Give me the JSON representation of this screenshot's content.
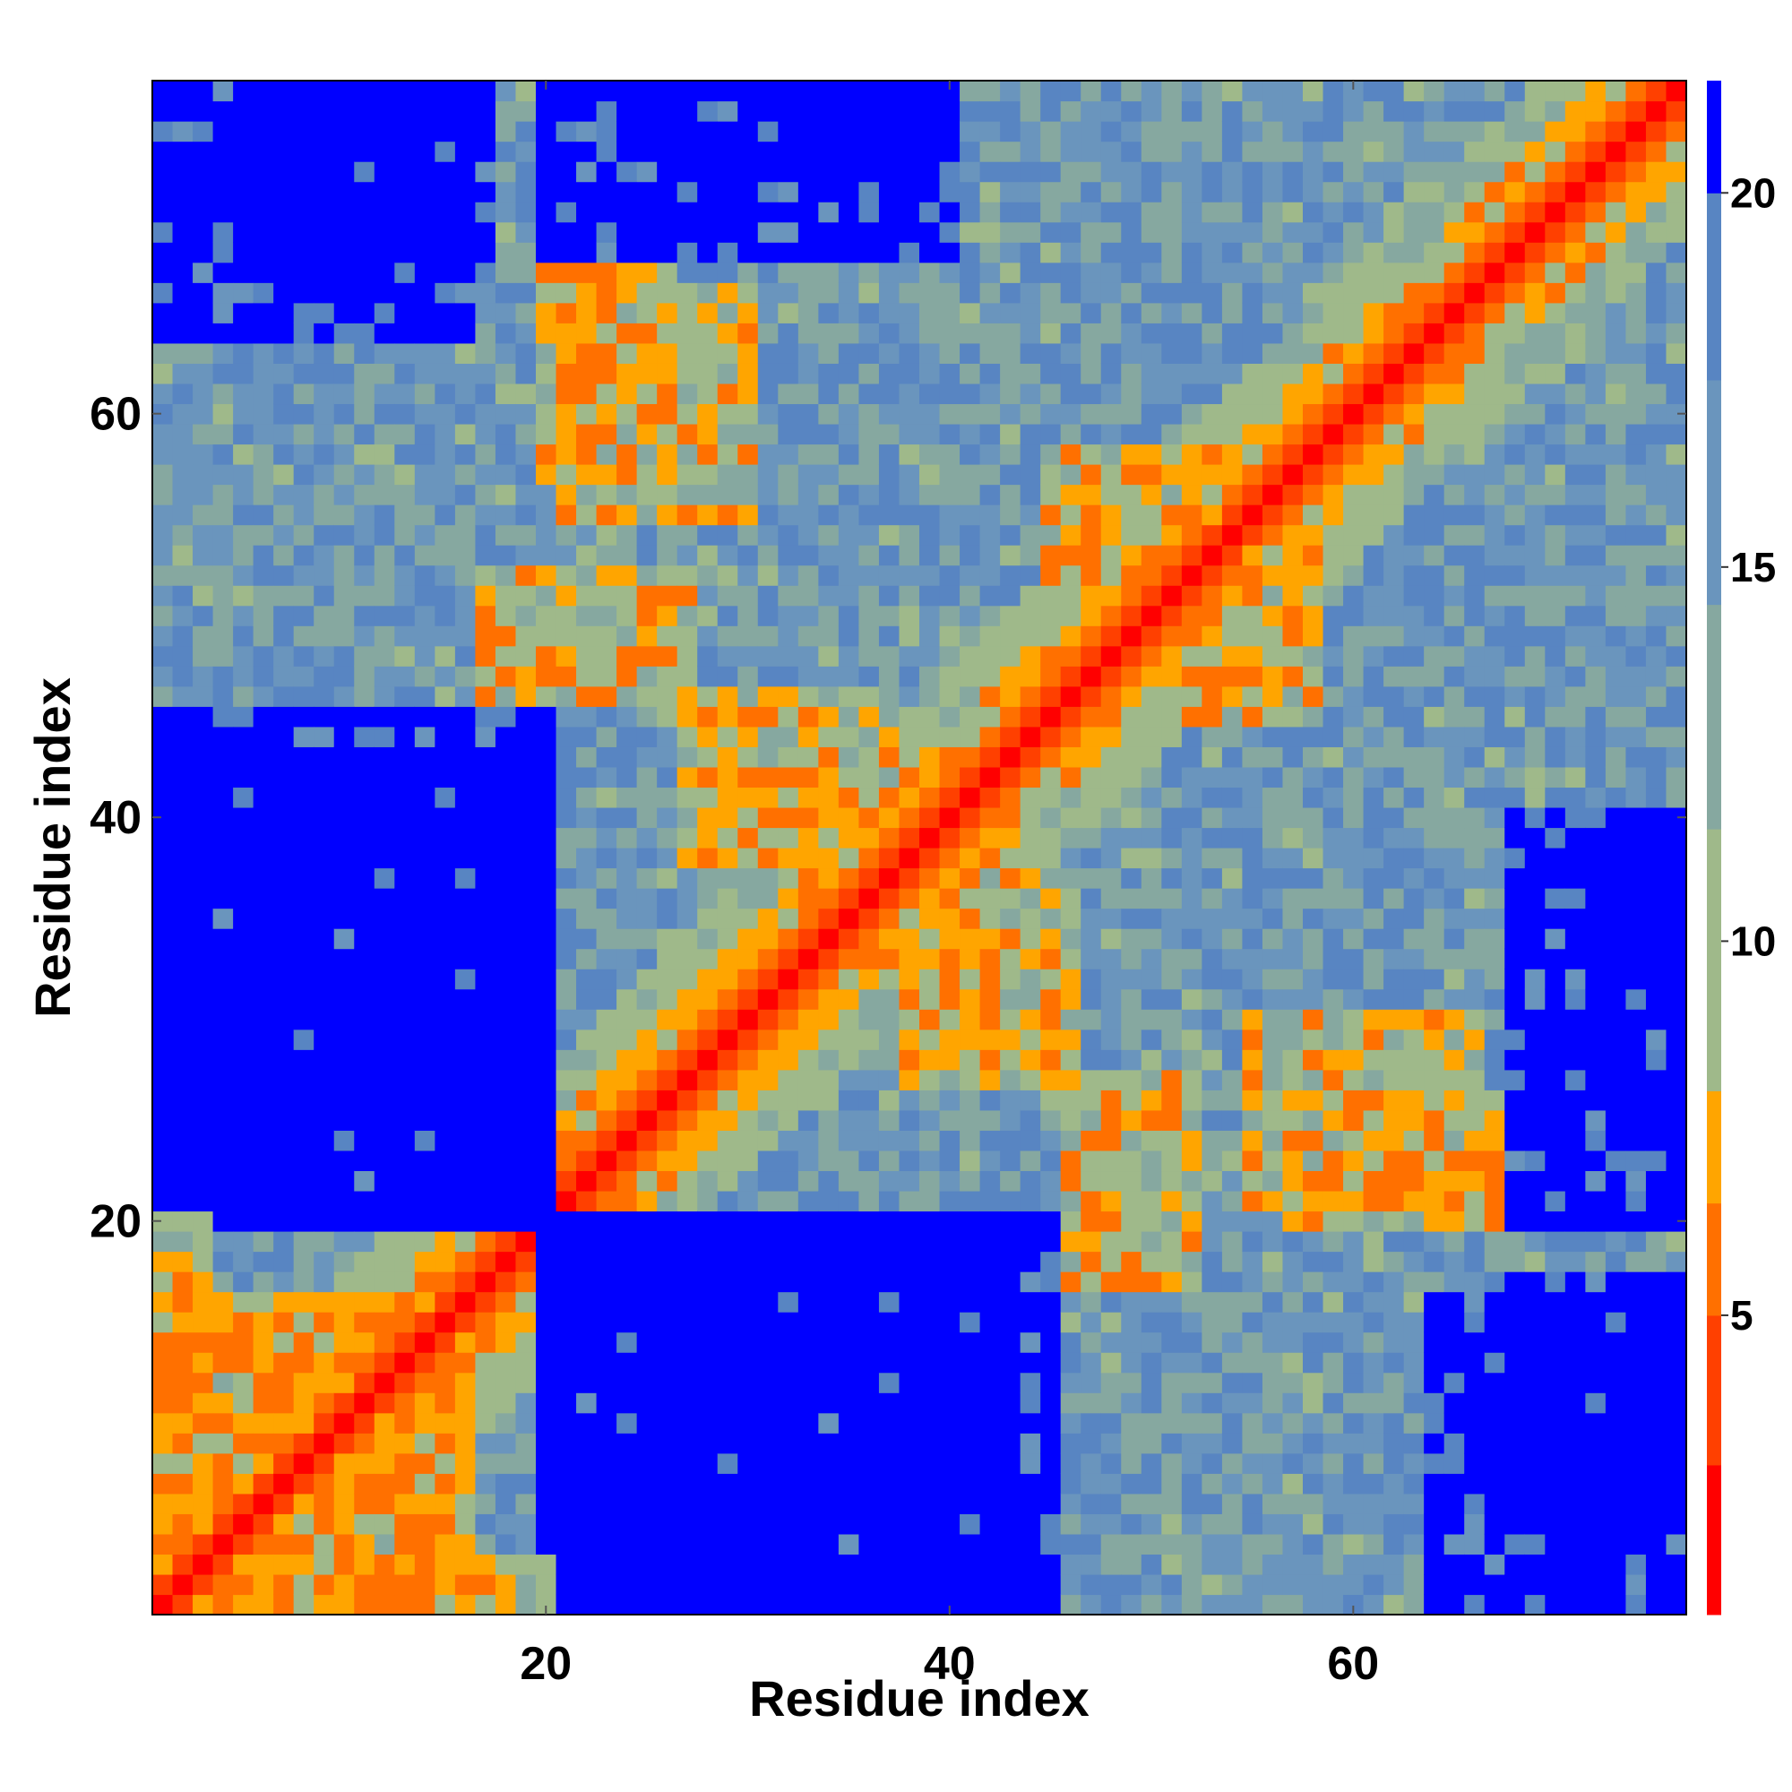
{
  "chart_data": {
    "type": "heatmap",
    "title": "",
    "xlabel": "Residue index",
    "ylabel": "Residue index",
    "n_residues": 76,
    "xlim": [
      1,
      76
    ],
    "ylim": [
      1,
      76
    ],
    "x_ticks": [
      20,
      40,
      60
    ],
    "y_ticks": [
      20,
      40,
      60
    ],
    "x_tick_labels": [
      "20",
      "40",
      "60"
    ],
    "y_tick_labels": [
      "20",
      "40",
      "60"
    ],
    "description_of_values": "pairwise residue distance map (symmetric), values clipped at ~21",
    "colorbar": {
      "range": [
        1,
        21.5
      ],
      "ticks": [
        5,
        10,
        15,
        20
      ],
      "tick_labels": [
        "5",
        "10",
        "15",
        "20"
      ],
      "colors": [
        {
          "to": 3,
          "color": "#ff0000"
        },
        {
          "to": 5,
          "color": "#ff4000"
        },
        {
          "to": 6.5,
          "color": "#ff7000"
        },
        {
          "to": 8,
          "color": "#ffa500"
        },
        {
          "to": 11.5,
          "color": "#9fb98a"
        },
        {
          "to": 14.5,
          "color": "#86a8a0"
        },
        {
          "to": 17.5,
          "color": "#6a95bd"
        },
        {
          "to": 20,
          "color": "#5885c2"
        },
        {
          "to": 21.5,
          "color": "#0000ff"
        }
      ]
    },
    "contact_regions": [
      {
        "residues_x": [
          1,
          16
        ],
        "residues_y": [
          1,
          16
        ],
        "feature": "beta hairpin band parallel to diagonal (offset ~3-6)"
      },
      {
        "residues_x": [
          21,
          30
        ],
        "residues_y": [
          55,
          66
        ],
        "feature": "off-diagonal orange contacts"
      },
      {
        "residues_x": [
          17,
          27
        ],
        "residues_y": [
          46,
          52
        ],
        "feature": "off-diagonal orange contacts"
      },
      {
        "residues_x": [
          27,
          37
        ],
        "residues_y": [
          38,
          46
        ],
        "feature": "off-diagonal orange contacts"
      },
      {
        "residues_x": [
          45,
          55
        ],
        "residues_y": [
          52,
          58
        ],
        "feature": "off-diagonal orange contacts"
      },
      {
        "residues_x": [
          57,
          67
        ],
        "residues_y": [
          20,
          26
        ],
        "feature": "off-diagonal orange contacts"
      },
      {
        "residues_x": [
          1,
          20
        ],
        "residues_y": [
          0,
          3
        ],
        "feature": "terminus contacts"
      }
    ],
    "far_regions": [
      {
        "residues_x": [
          1,
          20
        ],
        "residues_y": [
          20,
          43
        ],
        "value": 21,
        "feature": "large blue block"
      },
      {
        "residues_x": [
          20,
          45
        ],
        "residues_y": [
          1,
          20
        ],
        "value": 21,
        "feature": "large blue block"
      },
      {
        "residues_x": [
          5,
          17
        ],
        "residues_y": [
          68,
          76
        ],
        "value": 21,
        "feature": "blue block"
      },
      {
        "residues_x": [
          29,
          40
        ],
        "residues_y": [
          72,
          76
        ],
        "value": 21,
        "feature": "blue block"
      },
      {
        "residues_x": [
          64,
          76
        ],
        "residues_y": [
          1,
          16
        ],
        "value": 21,
        "feature": "blue block"
      },
      {
        "residues_x": [
          68,
          76
        ],
        "residues_y": [
          20,
          40
        ],
        "value": 21,
        "feature": "blue stripes"
      }
    ]
  }
}
